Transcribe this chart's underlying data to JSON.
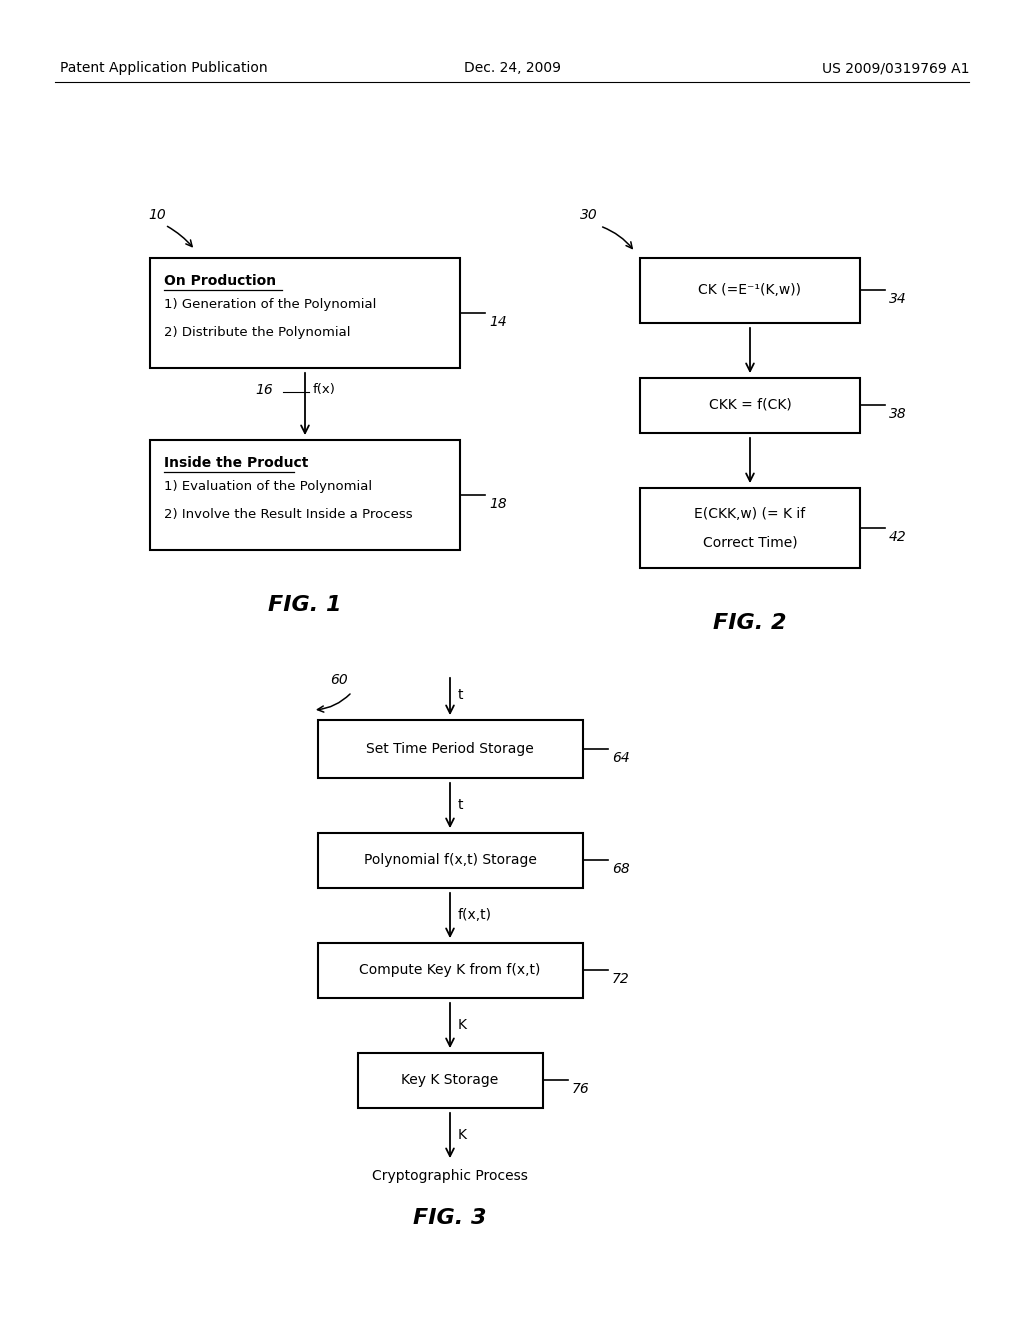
{
  "header_left": "Patent Application Publication",
  "header_center": "Dec. 24, 2009",
  "header_right": "US 2009/0319769 A1",
  "fig1_label": "FIG. 1",
  "fig2_label": "FIG. 2",
  "fig3_label": "FIG. 3",
  "fig1_ref": "10",
  "fig1_box1_title": "On Production",
  "fig1_box1_lines": [
    "1) Generation of the Polynomial",
    "2) Distribute the Polynomial"
  ],
  "fig1_arrow_label": "f(x)",
  "fig1_arrow_ref": "16",
  "fig1_box2_title": "Inside the Product",
  "fig1_box2_lines": [
    "1) Evaluation of the Polynomial",
    "2) Involve the Result Inside a Process"
  ],
  "fig1_box1_ref": "14",
  "fig1_box2_ref": "18",
  "fig2_ref": "30",
  "fig2_box1_text": "CK (=E⁻¹(K,w))",
  "fig2_box1_ref": "34",
  "fig2_box2_text": "CKK = f(CK)",
  "fig2_box2_ref": "38",
  "fig2_box3_line1": "E(CKK,w) (= K if",
  "fig2_box3_line2": "Correct Time)",
  "fig2_box3_ref": "42",
  "fig3_ref": "60",
  "fig3_input_label": "t",
  "fig3_box1_text": "Set Time Period Storage",
  "fig3_box1_ref": "64",
  "fig3_arrow1_label": "t",
  "fig3_box2_text": "Polynomial f(x,t) Storage",
  "fig3_box2_ref": "68",
  "fig3_arrow2_label": "f(x,t)",
  "fig3_box3_text": "Compute Key K from f(x,t)",
  "fig3_box3_ref": "72",
  "fig3_arrow3_label": "K",
  "fig3_box4_text": "Key K Storage",
  "fig3_box4_ref": "76",
  "fig3_arrow4_label": "K",
  "fig3_output_label": "Cryptographic Process"
}
